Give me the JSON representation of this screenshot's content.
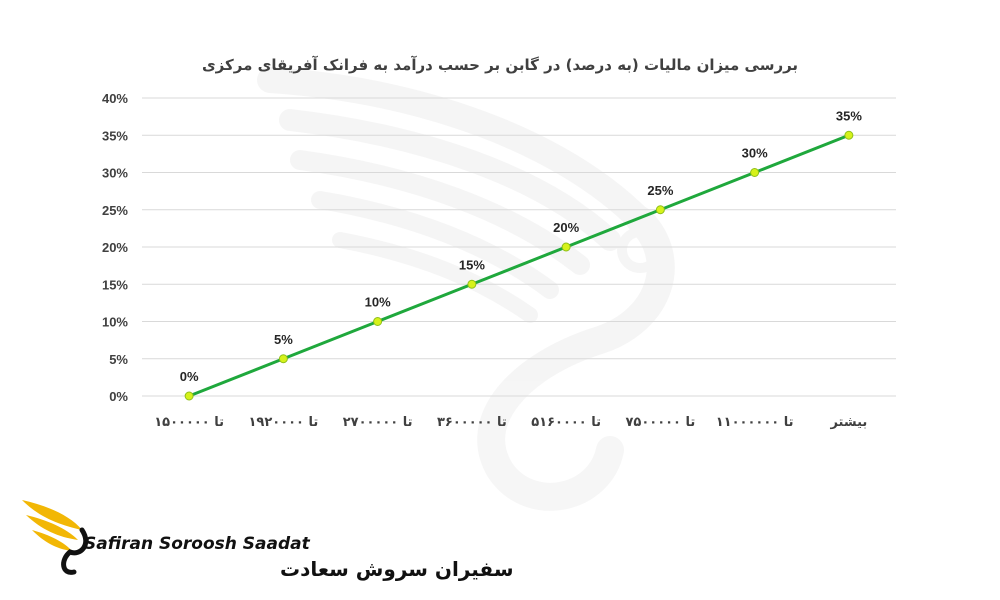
{
  "chart_data": {
    "type": "line",
    "title": "بررسی میزان مالیات (به درصد) در گابن بر حسب درآمد به فرانک آفریقای مرکزی",
    "categories": [
      "تا ۱۵۰۰۰۰۰",
      "تا ۱۹۲۰۰۰۰",
      "تا ۲۷۰۰۰۰۰",
      "تا ۳۶۰۰۰۰۰",
      "تا ۵۱۶۰۰۰۰",
      "تا ۷۵۰۰۰۰۰",
      "تا ۱۱۰۰۰۰۰۰",
      "بیشتر"
    ],
    "series": [
      {
        "values": [
          0,
          5,
          10,
          15,
          20,
          25,
          30,
          35
        ]
      }
    ],
    "data_labels": [
      "0%",
      "5%",
      "10%",
      "15%",
      "20%",
      "25%",
      "30%",
      "35%"
    ],
    "y_ticks": [
      "0%",
      "5%",
      "10%",
      "15%",
      "20%",
      "25%",
      "30%",
      "35%",
      "40%"
    ],
    "ylim": [
      0,
      40
    ],
    "grid": true,
    "legend": "none",
    "colors": {
      "line": "#1fa83c",
      "marker_fill": "#d6f21a",
      "grid": "#d9d9d9",
      "text": "#404040"
    }
  },
  "logo": {
    "name_en": "Safiran Soroosh Saadat",
    "name_fa": "سفیران سروش سعادت",
    "icon": "wing-swan-icon",
    "colors": {
      "wing": "#f2b705",
      "dark": "#111111"
    }
  }
}
